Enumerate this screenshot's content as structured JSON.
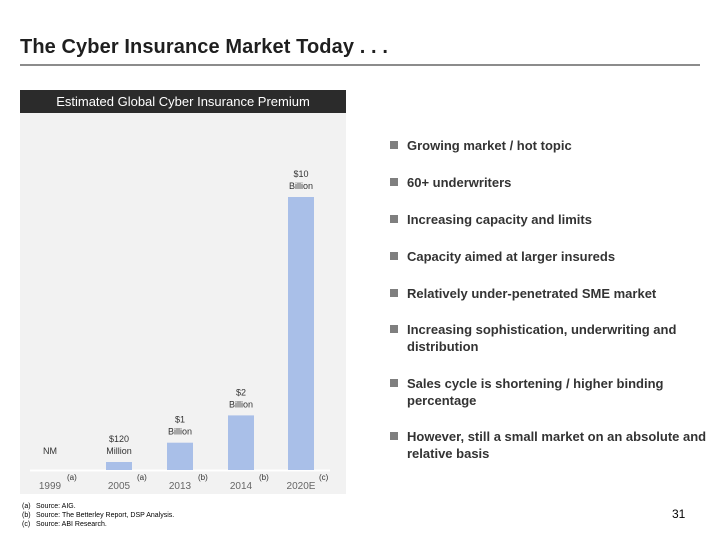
{
  "slide": {
    "title": "The Cyber Insurance Market Today . . .",
    "page_number": "31"
  },
  "chart_header": "Estimated Global Cyber Insurance Premium",
  "chart_data": {
    "type": "bar",
    "title": "Estimated Global Cyber Insurance Premium",
    "categories": [
      "1999",
      "2005",
      "2013",
      "2014",
      "2020E"
    ],
    "values": [
      0,
      0.12,
      1,
      2,
      10
    ],
    "value_unit": "Billion",
    "data_labels": [
      [
        "NM"
      ],
      [
        "$120",
        "Million"
      ],
      [
        "$1",
        "Billion"
      ],
      [
        "$2",
        "Billion"
      ],
      [
        "$10",
        "Billion"
      ]
    ],
    "footnote_marks": [
      "",
      "(a)",
      "(b)",
      "(b)",
      "(c)"
    ],
    "first_category_mark": "(a)",
    "ylim": [
      0,
      10
    ],
    "bar_color": "#a9bfe8",
    "grid": false,
    "xlabel": "",
    "ylabel": ""
  },
  "bullets": [
    "Growing market / hot topic",
    "60+ underwriters",
    "Increasing capacity and limits",
    "Capacity aimed at larger insureds",
    "Relatively under-penetrated SME market",
    "Increasing sophistication, underwriting and distribution",
    "Sales cycle is shortening / higher binding percentage",
    "However, still a small market on an absolute and relative basis"
  ],
  "footnotes": [
    {
      "key": "(a)",
      "text": "Source: AIG."
    },
    {
      "key": "(b)",
      "text": "Source: The Betterley Report, DSP Analysis."
    },
    {
      "key": "(c)",
      "text": "Source: ABI Research."
    }
  ]
}
